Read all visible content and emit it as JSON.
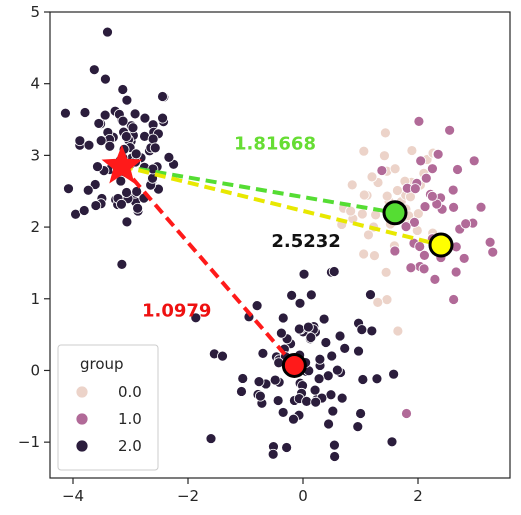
{
  "chart_data": {
    "type": "scatter",
    "xlim": [
      -4.4,
      3.6
    ],
    "ylim": [
      -1.5,
      5.0
    ],
    "x_ticks": [
      -4,
      -2,
      0,
      2
    ],
    "x_tick_labels": [
      "−4",
      "−2",
      "0",
      "2"
    ],
    "y_ticks": [
      -1,
      0,
      1,
      2,
      3,
      4,
      5
    ],
    "y_tick_labels": [
      "−1",
      "0",
      "1",
      "2",
      "3",
      "4",
      "5"
    ],
    "grid": false,
    "legend": {
      "title": "group",
      "placement": "lower-left",
      "entries": [
        {
          "label": "0.0",
          "color": "#ecd3c9"
        },
        {
          "label": "1.0",
          "color": "#b16a98"
        },
        {
          "label": "2.0",
          "color": "#2b1d3c"
        }
      ]
    },
    "clusters": [
      {
        "group": "0.0",
        "color": "#ecd3c9",
        "center": [
          1.6,
          2.3
        ],
        "spread": [
          0.45,
          0.5
        ],
        "count": 45
      },
      {
        "group": "1.0",
        "color": "#b16a98",
        "center": [
          2.3,
          2.1
        ],
        "spread": [
          0.45,
          0.55
        ],
        "count": 40
      },
      {
        "group": "2.0",
        "color": "#2b1d3c",
        "center": [
          -3.1,
          3.0
        ],
        "spread": [
          0.45,
          0.55
        ],
        "count": 90
      },
      {
        "group": "2.0",
        "color": "#2b1d3c",
        "center": [
          0.05,
          0.1
        ],
        "spread": [
          0.55,
          0.55
        ],
        "count": 90
      }
    ],
    "outliers": [
      {
        "group": "1.0",
        "x": 2.55,
        "y": 3.35
      },
      {
        "group": "1.0",
        "x": 3.3,
        "y": 1.65
      },
      {
        "group": "1.0",
        "x": 1.8,
        "y": -0.6
      },
      {
        "group": "0.0",
        "x": 1.65,
        "y": 0.55
      },
      {
        "group": "0.0",
        "x": 1.3,
        "y": 0.95
      },
      {
        "group": "2.0",
        "x": -3.4,
        "y": 4.72
      },
      {
        "group": "2.0",
        "x": -3.15,
        "y": 1.48
      },
      {
        "group": "2.0",
        "x": -1.4,
        "y": 0.2
      },
      {
        "group": "2.0",
        "x": 0.55,
        "y": -1.2
      },
      {
        "group": "2.0",
        "x": -1.6,
        "y": -0.95
      }
    ],
    "star": {
      "x": -3.15,
      "y": 2.85,
      "color": "#ff1a1a"
    },
    "targets": [
      {
        "x": 1.6,
        "y": 2.2,
        "color": "#55dd33",
        "distance_label": "1.81668",
        "label_color": "#66dd33",
        "label_x": -1.2,
        "label_y": 3.08
      },
      {
        "x": 2.4,
        "y": 1.75,
        "color": "#ffff00",
        "line_color": "#e8e800",
        "distance_label": "2.5232",
        "label_color": "#111111",
        "label_x": -0.55,
        "label_y": 1.72
      },
      {
        "x": -0.15,
        "y": 0.07,
        "color": "#ff1a1a",
        "distance_label": "1.0979",
        "label_color": "#ee1111",
        "label_x": -2.8,
        "label_y": 0.75
      }
    ]
  }
}
